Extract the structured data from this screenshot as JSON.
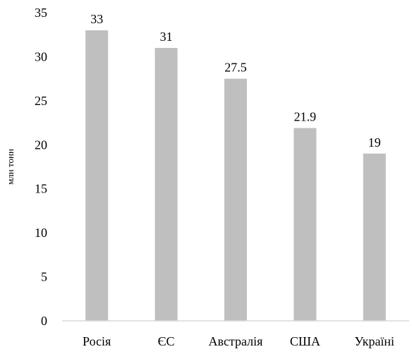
{
  "chart_data": {
    "type": "bar",
    "title": "",
    "xlabel": "",
    "ylabel": "млн тонн",
    "categories": [
      "Росія",
      "ЄС",
      "Австралія",
      "США",
      "Україні"
    ],
    "values": [
      33,
      31,
      27.5,
      21.9,
      19
    ],
    "data_labels": [
      "33",
      "31",
      "27.5",
      "21.9",
      "19"
    ],
    "ylim": [
      0,
      35
    ],
    "yticks": [
      "0",
      "5",
      "10",
      "15",
      "20",
      "25",
      "30",
      "35"
    ],
    "grid": false,
    "legend": "none",
    "colors": {
      "bar": "#bfbfbf",
      "axis": "#d9d9d9",
      "text": "#000000"
    }
  }
}
